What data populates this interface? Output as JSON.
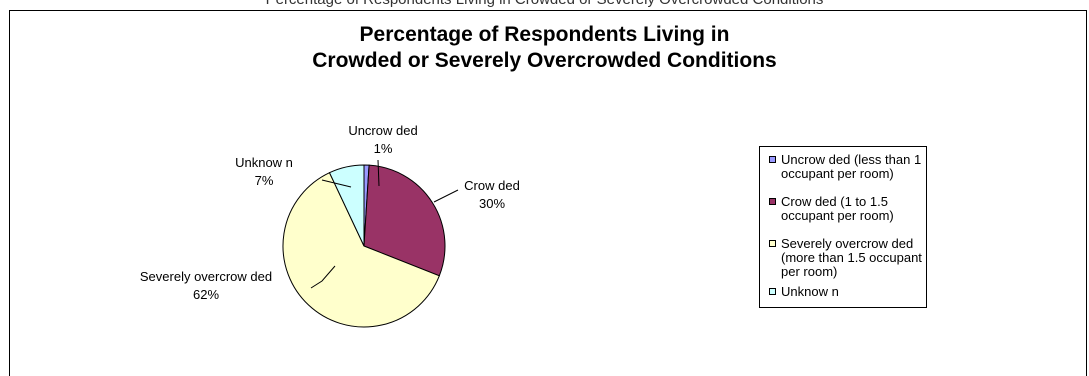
{
  "page": {
    "top_fragment": "Percentage of Respondents Living in Crowded or Severely Overcrowded Conditions"
  },
  "chart_data": {
    "type": "pie",
    "title_line1": "Percentage of Respondents Living in",
    "title_line2": "Crowded or Severely Overcrowded Conditions",
    "slices": [
      {
        "name": "Uncrow ded",
        "legend": "Uncrow ded (less than 1 occupant per room)",
        "value": 1,
        "label": "1%",
        "color": "#9999ff"
      },
      {
        "name": "Crow ded",
        "legend": "Crow ded (1 to 1.5 occupant per room)",
        "value": 30,
        "label": "30%",
        "color": "#993366"
      },
      {
        "name": "Severely overcrow ded",
        "legend": "Severely overcrow ded (more than 1.5 occupant per room)",
        "value": 62,
        "label": "62%",
        "color": "#ffffcc"
      },
      {
        "name": "Unknow n",
        "legend": "Unknow n",
        "value": 7,
        "label": "7%",
        "color": "#ccffff"
      }
    ],
    "legend_position": "right"
  }
}
